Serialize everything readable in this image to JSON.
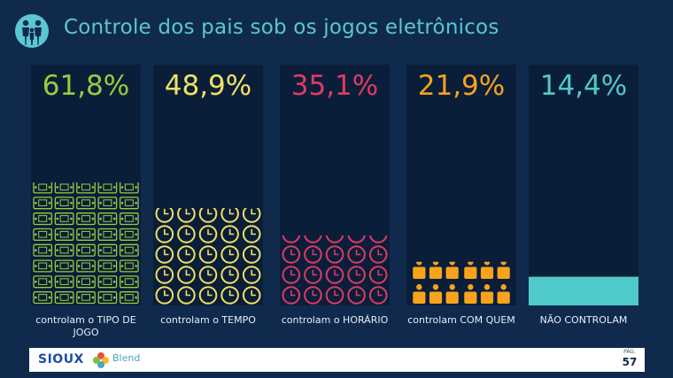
{
  "title": "Controle dos pais sob os jogos eletrônicos",
  "colors": {
    "background": "#0f2a4d",
    "panel": "#0a1e3a",
    "title": "#5bc7d0",
    "label": "#e8eef6"
  },
  "chart_data": {
    "type": "bar",
    "title": "Controle dos pais sob os jogos eletrônicos",
    "unit": "%",
    "ylim": [
      0,
      100
    ],
    "categories": [
      "controlam o TIPO DE JOGO",
      "controlam o TEMPO",
      "controlam o HORÁRIO",
      "controlam COM QUEM",
      "NÃO CONTROLAM"
    ],
    "values": [
      61.8,
      48.9,
      35.1,
      21.9,
      14.4
    ],
    "value_labels": [
      "61,8%",
      "48,9%",
      "35,1%",
      "21,9%",
      "14,4%"
    ],
    "colors": [
      "#9ccb3b",
      "#f2e160",
      "#de3b63",
      "#f8a31b",
      "#4fc9c9"
    ],
    "icons": [
      "game-console-icon",
      "clock-icon",
      "clock-icon",
      "people-group-icon",
      ""
    ]
  },
  "footer": {
    "logo_sioux": "SIOUX",
    "logo_blend": "Blend",
    "page_label": "PÁG.",
    "page_number": "57"
  }
}
